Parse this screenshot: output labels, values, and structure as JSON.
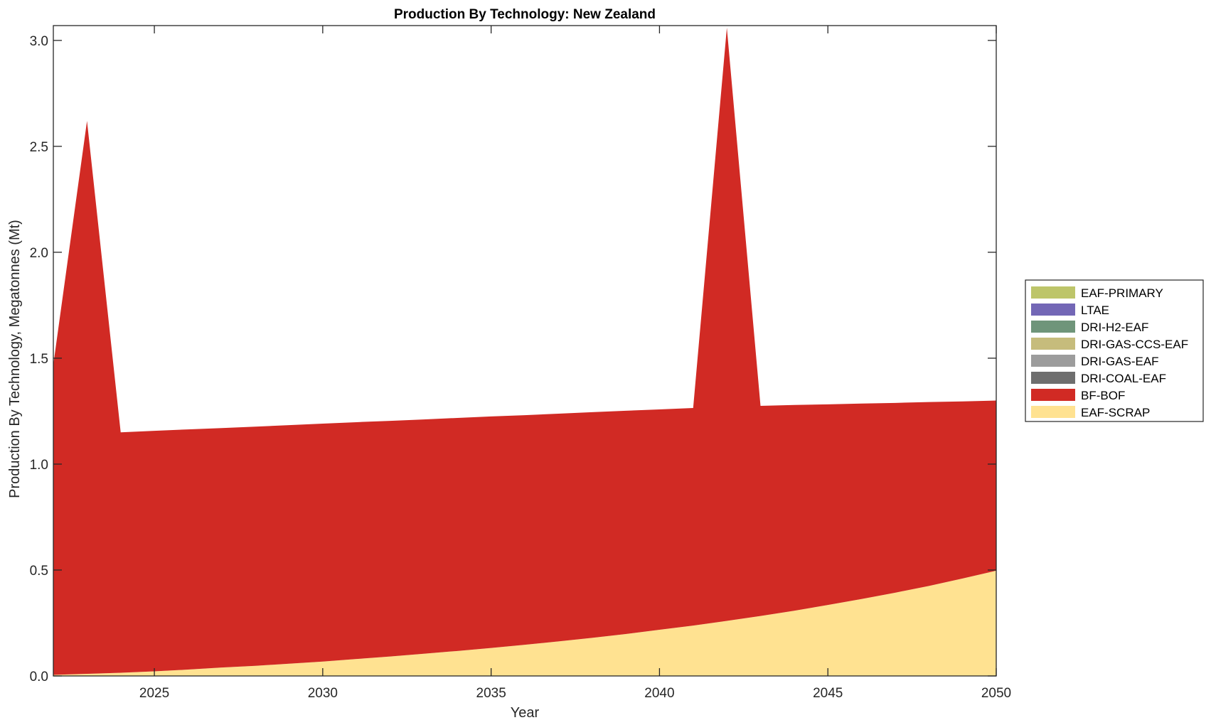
{
  "chart_data": {
    "type": "area",
    "stacked": true,
    "title": "Production By Technology: New Zealand",
    "xlabel": "Year",
    "ylabel": "Production By Technology, Megatonnes (Mt)",
    "xlim": [
      2022,
      2050
    ],
    "ylim": [
      0,
      3.07
    ],
    "xticks": [
      2025,
      2030,
      2035,
      2040,
      2045,
      2050
    ],
    "yticks": [
      0.0,
      0.5,
      1.0,
      1.5,
      2.0,
      2.5,
      3.0
    ],
    "ytick_labels": [
      "0.0",
      "0.5",
      "1.0",
      "1.5",
      "2.0",
      "2.5",
      "3.0"
    ],
    "legend_position": "right",
    "x": [
      2022,
      2023,
      2024,
      2025,
      2026,
      2027,
      2028,
      2029,
      2030,
      2031,
      2032,
      2033,
      2034,
      2035,
      2036,
      2037,
      2038,
      2039,
      2040,
      2041,
      2042,
      2043,
      2044,
      2045,
      2046,
      2047,
      2048,
      2049,
      2050
    ],
    "series": [
      {
        "name": "EAF-SCRAP",
        "color": "#FFE291",
        "values": [
          0.005,
          0.01,
          0.015,
          0.022,
          0.03,
          0.04,
          0.048,
          0.058,
          0.068,
          0.08,
          0.092,
          0.105,
          0.118,
          0.132,
          0.147,
          0.163,
          0.18,
          0.198,
          0.218,
          0.238,
          0.26,
          0.283,
          0.308,
          0.335,
          0.363,
          0.393,
          0.425,
          0.46,
          0.497
        ]
      },
      {
        "name": "BF-BOF",
        "color": "#D12A24",
        "values": [
          1.465,
          2.61,
          1.135,
          1.135,
          1.134,
          1.13,
          1.129,
          1.126,
          1.123,
          1.118,
          1.112,
          1.106,
          1.1,
          1.093,
          1.084,
          1.075,
          1.065,
          1.054,
          1.04,
          1.027,
          2.8,
          0.992,
          0.971,
          0.947,
          0.923,
          0.896,
          0.868,
          0.836,
          0.803
        ]
      },
      {
        "name": "DRI-COAL-EAF",
        "color": "#6E6E6E",
        "values": [
          0,
          0,
          0,
          0,
          0,
          0,
          0,
          0,
          0,
          0,
          0,
          0,
          0,
          0,
          0,
          0,
          0,
          0,
          0,
          0,
          0,
          0,
          0,
          0,
          0,
          0,
          0,
          0,
          0
        ]
      },
      {
        "name": "DRI-GAS-EAF",
        "color": "#9C9C9C",
        "values": [
          0,
          0,
          0,
          0,
          0,
          0,
          0,
          0,
          0,
          0,
          0,
          0,
          0,
          0,
          0,
          0,
          0,
          0,
          0,
          0,
          0,
          0,
          0,
          0,
          0,
          0,
          0,
          0,
          0
        ]
      },
      {
        "name": "DRI-GAS-CCS-EAF",
        "color": "#C6BC7C",
        "values": [
          0,
          0,
          0,
          0,
          0,
          0,
          0,
          0,
          0,
          0,
          0,
          0,
          0,
          0,
          0,
          0,
          0,
          0,
          0,
          0,
          0,
          0,
          0,
          0,
          0,
          0,
          0,
          0,
          0
        ]
      },
      {
        "name": "DRI-H2-EAF",
        "color": "#6F957A",
        "values": [
          0,
          0,
          0,
          0,
          0,
          0,
          0,
          0,
          0,
          0,
          0,
          0,
          0,
          0,
          0,
          0,
          0,
          0,
          0,
          0,
          0,
          0,
          0,
          0,
          0,
          0,
          0,
          0,
          0
        ]
      },
      {
        "name": "LTAE",
        "color": "#7367B6",
        "values": [
          0,
          0,
          0,
          0,
          0,
          0,
          0,
          0,
          0,
          0,
          0,
          0,
          0,
          0,
          0,
          0,
          0,
          0,
          0,
          0,
          0,
          0,
          0,
          0,
          0,
          0,
          0,
          0,
          0
        ]
      },
      {
        "name": "EAF-PRIMARY",
        "color": "#BDC56A",
        "values": [
          0,
          0,
          0,
          0,
          0,
          0,
          0,
          0,
          0,
          0,
          0,
          0,
          0,
          0,
          0,
          0,
          0,
          0,
          0,
          0,
          0,
          0,
          0,
          0,
          0,
          0,
          0,
          0,
          0
        ]
      }
    ]
  }
}
